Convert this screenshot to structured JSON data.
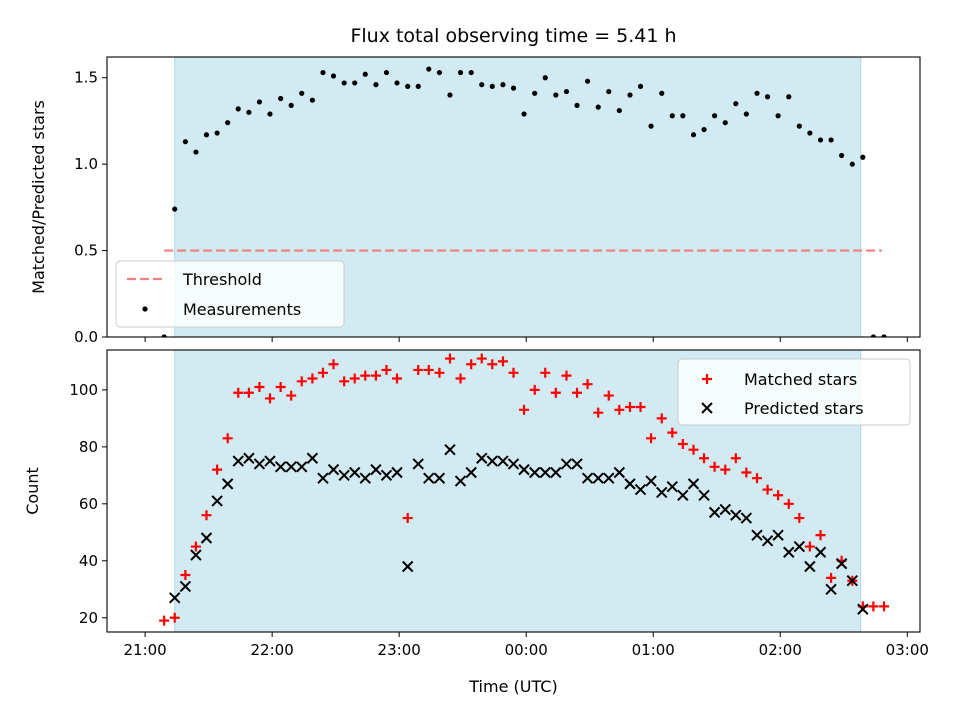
{
  "chart_data": [
    {
      "type": "scatter",
      "title": "Flux total observing time = 5.41 h",
      "ylabel": "Matched/Predicted stars",
      "xlabel": "",
      "x_unit": "hours since 21:00 UTC",
      "xlim": [
        -0.3,
        6.1
      ],
      "ylim": [
        0.0,
        1.62
      ],
      "yticks": [
        0.0,
        0.5,
        1.0,
        1.5
      ],
      "ytick_labels": [
        "0.0",
        "0.5",
        "1.0",
        "1.5"
      ],
      "shaded_span": {
        "start": 0.233,
        "end": 5.633,
        "color": "#add8e6"
      },
      "threshold": {
        "name": "Threshold",
        "value": 0.5,
        "xrange": [
          0.15,
          5.8
        ],
        "color": "#f08080"
      },
      "legend": {
        "position": "lower-left",
        "entries": [
          "Threshold",
          "Measurements"
        ]
      },
      "series": [
        {
          "name": "Measurements",
          "marker": "dot",
          "color": "#000000",
          "points": [
            [
              0.15,
              0.0
            ],
            [
              0.233,
              0.74
            ],
            [
              0.317,
              1.13
            ],
            [
              0.4,
              1.07
            ],
            [
              0.483,
              1.17
            ],
            [
              0.567,
              1.18
            ],
            [
              0.65,
              1.24
            ],
            [
              0.733,
              1.32
            ],
            [
              0.817,
              1.3
            ],
            [
              0.9,
              1.36
            ],
            [
              0.983,
              1.29
            ],
            [
              1.067,
              1.38
            ],
            [
              1.15,
              1.34
            ],
            [
              1.233,
              1.41
            ],
            [
              1.317,
              1.37
            ],
            [
              1.4,
              1.53
            ],
            [
              1.483,
              1.51
            ],
            [
              1.567,
              1.47
            ],
            [
              1.65,
              1.47
            ],
            [
              1.733,
              1.52
            ],
            [
              1.817,
              1.46
            ],
            [
              1.9,
              1.53
            ],
            [
              1.983,
              1.47
            ],
            [
              2.067,
              1.45
            ],
            [
              2.15,
              1.45
            ],
            [
              2.233,
              1.55
            ],
            [
              2.317,
              1.53
            ],
            [
              2.4,
              1.4
            ],
            [
              2.483,
              1.53
            ],
            [
              2.567,
              1.53
            ],
            [
              2.65,
              1.46
            ],
            [
              2.733,
              1.45
            ],
            [
              2.817,
              1.46
            ],
            [
              2.9,
              1.44
            ],
            [
              2.983,
              1.29
            ],
            [
              3.067,
              1.41
            ],
            [
              3.15,
              1.5
            ],
            [
              3.233,
              1.4
            ],
            [
              3.317,
              1.42
            ],
            [
              3.4,
              1.34
            ],
            [
              3.483,
              1.48
            ],
            [
              3.567,
              1.33
            ],
            [
              3.65,
              1.42
            ],
            [
              3.733,
              1.31
            ],
            [
              3.817,
              1.4
            ],
            [
              3.9,
              1.45
            ],
            [
              3.983,
              1.22
            ],
            [
              4.067,
              1.41
            ],
            [
              4.15,
              1.28
            ],
            [
              4.233,
              1.28
            ],
            [
              4.317,
              1.17
            ],
            [
              4.4,
              1.2
            ],
            [
              4.483,
              1.28
            ],
            [
              4.567,
              1.24
            ],
            [
              4.65,
              1.35
            ],
            [
              4.733,
              1.29
            ],
            [
              4.817,
              1.41
            ],
            [
              4.9,
              1.39
            ],
            [
              4.983,
              1.28
            ],
            [
              5.067,
              1.39
            ],
            [
              5.15,
              1.22
            ],
            [
              5.233,
              1.18
            ],
            [
              5.317,
              1.14
            ],
            [
              5.4,
              1.14
            ],
            [
              5.483,
              1.05
            ],
            [
              5.567,
              1.0
            ],
            [
              5.65,
              1.04
            ],
            [
              5.733,
              0.0
            ],
            [
              5.817,
              0.0
            ]
          ]
        }
      ]
    },
    {
      "type": "scatter",
      "title": "",
      "ylabel": "Count",
      "xlabel": "Time (UTC)",
      "x_unit": "hours since 21:00 UTC",
      "xlim": [
        -0.3,
        6.1
      ],
      "ylim": [
        15,
        114
      ],
      "yticks": [
        20,
        40,
        60,
        80,
        100
      ],
      "ytick_labels": [
        "20",
        "40",
        "60",
        "80",
        "100"
      ],
      "xticks": [
        0,
        1,
        2,
        3,
        4,
        5,
        6
      ],
      "xtick_labels": [
        "21:00",
        "22:00",
        "23:00",
        "00:00",
        "01:00",
        "02:00",
        "03:00"
      ],
      "shaded_span": {
        "start": 0.233,
        "end": 5.633,
        "color": "#add8e6"
      },
      "legend": {
        "position": "upper-right",
        "entries": [
          "Matched stars",
          "Predicted stars"
        ]
      },
      "series": [
        {
          "name": "Matched stars",
          "marker": "plus",
          "color": "#ff0000",
          "points": [
            [
              0.15,
              19
            ],
            [
              0.233,
              20
            ],
            [
              0.317,
              35
            ],
            [
              0.4,
              45
            ],
            [
              0.483,
              56
            ],
            [
              0.567,
              72
            ],
            [
              0.65,
              83
            ],
            [
              0.733,
              99
            ],
            [
              0.817,
              99
            ],
            [
              0.9,
              101
            ],
            [
              0.983,
              97
            ],
            [
              1.067,
              101
            ],
            [
              1.15,
              98
            ],
            [
              1.233,
              103
            ],
            [
              1.317,
              104
            ],
            [
              1.4,
              106
            ],
            [
              1.483,
              109
            ],
            [
              1.567,
              103
            ],
            [
              1.65,
              104
            ],
            [
              1.733,
              105
            ],
            [
              1.817,
              105
            ],
            [
              1.9,
              107
            ],
            [
              1.983,
              104
            ],
            [
              2.067,
              55
            ],
            [
              2.15,
              107
            ],
            [
              2.233,
              107
            ],
            [
              2.317,
              106
            ],
            [
              2.4,
              111
            ],
            [
              2.483,
              104
            ],
            [
              2.567,
              109
            ],
            [
              2.65,
              111
            ],
            [
              2.733,
              109
            ],
            [
              2.817,
              110
            ],
            [
              2.9,
              106
            ],
            [
              2.983,
              93
            ],
            [
              3.067,
              100
            ],
            [
              3.15,
              106
            ],
            [
              3.233,
              99
            ],
            [
              3.317,
              105
            ],
            [
              3.4,
              99
            ],
            [
              3.483,
              102
            ],
            [
              3.567,
              92
            ],
            [
              3.65,
              98
            ],
            [
              3.733,
              93
            ],
            [
              3.817,
              94
            ],
            [
              3.9,
              94
            ],
            [
              3.983,
              83
            ],
            [
              4.067,
              90
            ],
            [
              4.15,
              85
            ],
            [
              4.233,
              81
            ],
            [
              4.317,
              79
            ],
            [
              4.4,
              76
            ],
            [
              4.483,
              73
            ],
            [
              4.567,
              72
            ],
            [
              4.65,
              76
            ],
            [
              4.733,
              71
            ],
            [
              4.817,
              69
            ],
            [
              4.9,
              65
            ],
            [
              4.983,
              63
            ],
            [
              5.067,
              60
            ],
            [
              5.15,
              55
            ],
            [
              5.233,
              45
            ],
            [
              5.317,
              49
            ],
            [
              5.4,
              34
            ],
            [
              5.483,
              40
            ],
            [
              5.567,
              33
            ],
            [
              5.65,
              24
            ],
            [
              5.733,
              24
            ],
            [
              5.817,
              24
            ]
          ]
        },
        {
          "name": "Predicted stars",
          "marker": "x",
          "color": "#000000",
          "points": [
            [
              0.233,
              27
            ],
            [
              0.317,
              31
            ],
            [
              0.4,
              42
            ],
            [
              0.483,
              48
            ],
            [
              0.567,
              61
            ],
            [
              0.65,
              67
            ],
            [
              0.733,
              75
            ],
            [
              0.817,
              76
            ],
            [
              0.9,
              74
            ],
            [
              0.983,
              75
            ],
            [
              1.067,
              73
            ],
            [
              1.15,
              73
            ],
            [
              1.233,
              73
            ],
            [
              1.317,
              76
            ],
            [
              1.4,
              69
            ],
            [
              1.483,
              72
            ],
            [
              1.567,
              70
            ],
            [
              1.65,
              71
            ],
            [
              1.733,
              69
            ],
            [
              1.817,
              72
            ],
            [
              1.9,
              70
            ],
            [
              1.983,
              71
            ],
            [
              2.067,
              38
            ],
            [
              2.15,
              74
            ],
            [
              2.233,
              69
            ],
            [
              2.317,
              69
            ],
            [
              2.4,
              79
            ],
            [
              2.483,
              68
            ],
            [
              2.567,
              71
            ],
            [
              2.65,
              76
            ],
            [
              2.733,
              75
            ],
            [
              2.817,
              75
            ],
            [
              2.9,
              74
            ],
            [
              2.983,
              72
            ],
            [
              3.067,
              71
            ],
            [
              3.15,
              71
            ],
            [
              3.233,
              71
            ],
            [
              3.317,
              74
            ],
            [
              3.4,
              74
            ],
            [
              3.483,
              69
            ],
            [
              3.567,
              69
            ],
            [
              3.65,
              69
            ],
            [
              3.733,
              71
            ],
            [
              3.817,
              67
            ],
            [
              3.9,
              65
            ],
            [
              3.983,
              68
            ],
            [
              4.067,
              64
            ],
            [
              4.15,
              66
            ],
            [
              4.233,
              63
            ],
            [
              4.317,
              67
            ],
            [
              4.4,
              63
            ],
            [
              4.483,
              57
            ],
            [
              4.567,
              58
            ],
            [
              4.65,
              56
            ],
            [
              4.733,
              55
            ],
            [
              4.817,
              49
            ],
            [
              4.9,
              47
            ],
            [
              4.983,
              49
            ],
            [
              5.067,
              43
            ],
            [
              5.15,
              45
            ],
            [
              5.233,
              38
            ],
            [
              5.317,
              43
            ],
            [
              5.4,
              30
            ],
            [
              5.483,
              39
            ],
            [
              5.567,
              33
            ],
            [
              5.65,
              23
            ]
          ]
        }
      ]
    }
  ]
}
